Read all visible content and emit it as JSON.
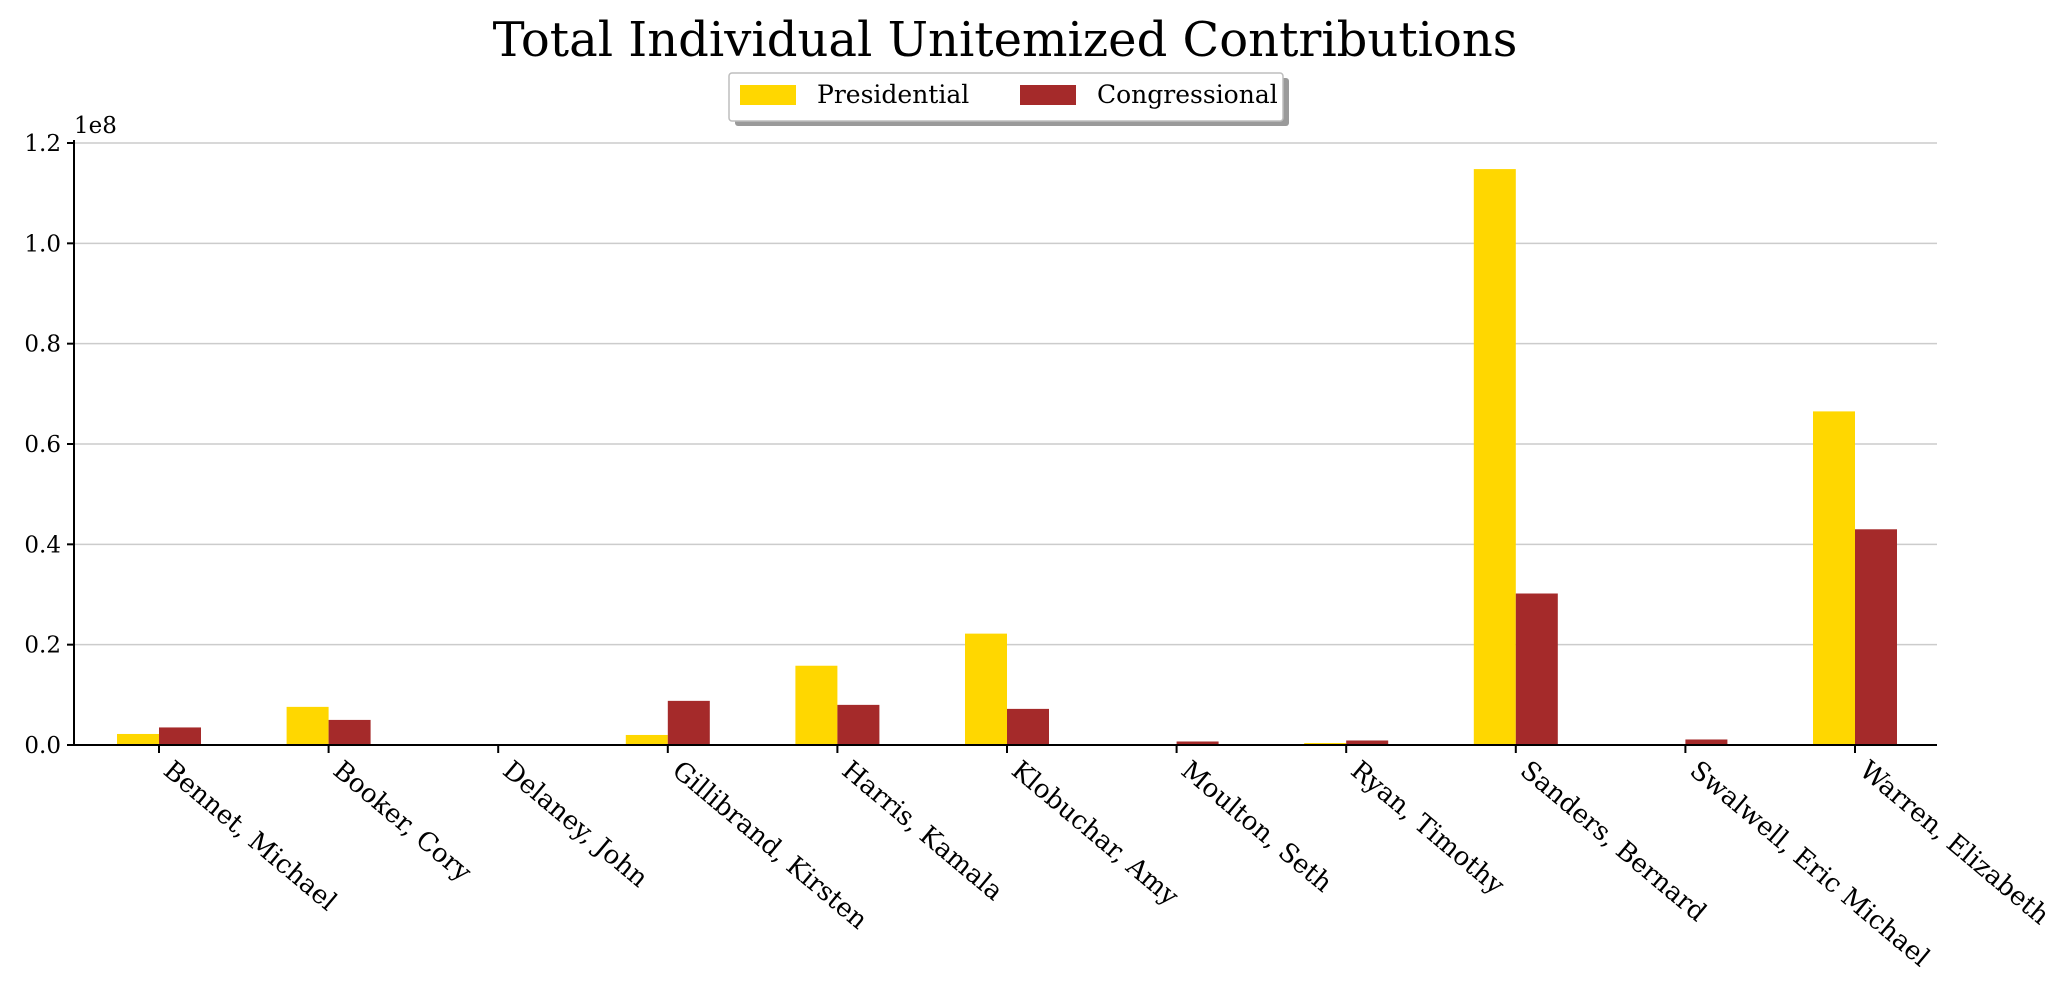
{
  "chart_data": {
    "type": "bar",
    "title": "Total Individual Unitemized Contributions",
    "xlabel": "",
    "ylabel": "",
    "y_offset_label": "1e8",
    "ylim": [
      0,
      1.2
    ],
    "yticks": [
      "0.0",
      "0.2",
      "0.4",
      "0.6",
      "0.8",
      "1.0",
      "1.2"
    ],
    "grid": "horizontal",
    "legend_position": "top-center",
    "categories": [
      "Bennet, Michael",
      "Booker, Cory",
      "Delaney, John",
      "Gillibrand, Kirsten",
      "Harris, Kamala",
      "Klobuchar, Amy",
      "Moulton, Seth",
      "Ryan, Timothy",
      "Sanders, Bernard",
      "Swalwell, Eric Michael",
      "Warren, Elizabeth"
    ],
    "series": [
      {
        "name": "Presidential",
        "color": "#FFD700",
        "values": [
          0.022,
          0.076,
          0.0,
          0.02,
          0.158,
          0.222,
          0.0,
          0.004,
          1.148,
          0.0,
          0.665
        ]
      },
      {
        "name": "Congressional",
        "color": "#A52A2A",
        "values": [
          0.035,
          0.05,
          0.0,
          0.088,
          0.08,
          0.072,
          0.007,
          0.009,
          0.302,
          0.011,
          0.43
        ]
      }
    ]
  }
}
